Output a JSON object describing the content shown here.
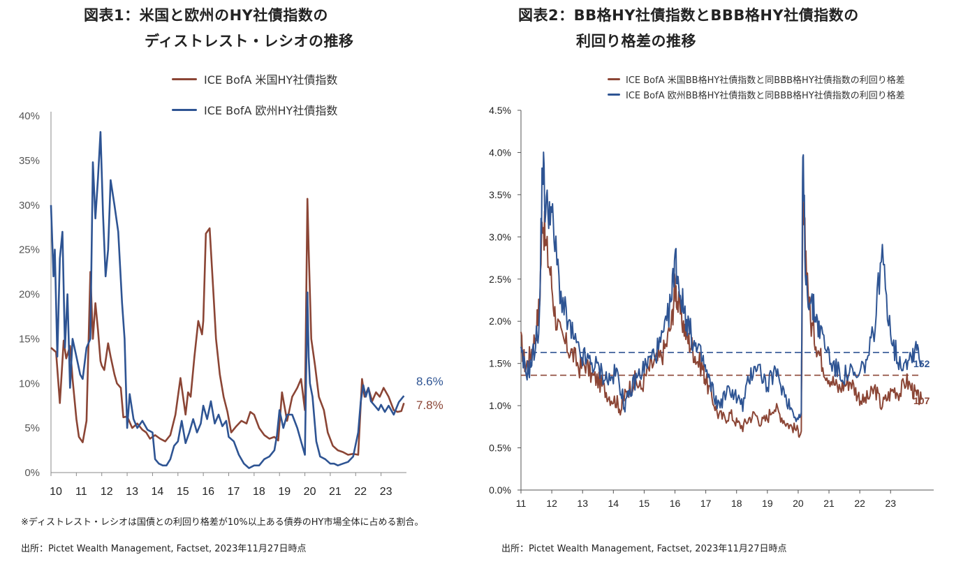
{
  "colors": {
    "us": "#8B4535",
    "eu": "#2E5493",
    "axis": "#555555"
  },
  "panel1": {
    "title_line1": "図表1：米国と欧州のHY社債指数の",
    "title_line2": "ディストレスト・レシオの推移",
    "legend": [
      "ICE BofA 米国HY社債指数",
      "ICE BofA 欧州HY社債指数"
    ],
    "end_labels": {
      "eu": "8.6%",
      "us": "7.8%"
    },
    "note": "※ディストレスト・レシオは国債との利回り格差が10%以上ある債券のHY市場全体に占める割合。",
    "source": "出所：Pictet Wealth Management, Factset, 2023年11月27日時点"
  },
  "panel2": {
    "title_line1": "図表2：BB格HY社債指数とBBB格HY社債指数の",
    "title_line2": "利回り格差の推移",
    "legend": [
      "ICE BofA 米国BB格HY社債指数と同BBB格HY社債指数の利回り格差",
      "ICE BofA 欧州BB格HY社債指数と同BBB格HY社債指数の利回り格差"
    ],
    "end_labels": {
      "eu": "152",
      "us": "107"
    },
    "source": "出所：Pictet Wealth Management, Factset, 2023年11月27日時点"
  },
  "chart_data": [
    {
      "type": "line",
      "title": "図表1：米国と欧州のHY社債指数のディストレスト・レシオの推移",
      "x_ticks": [
        "10",
        "11",
        "12",
        "13",
        "14",
        "15",
        "16",
        "17",
        "18",
        "19",
        "20",
        "21",
        "22",
        "23"
      ],
      "y_ticks": [
        "0%",
        "5%",
        "10%",
        "15%",
        "20%",
        "25%",
        "30%",
        "35%",
        "40%"
      ],
      "xlim": [
        2010.0,
        2024.0
      ],
      "ylim": [
        0,
        40
      ],
      "series": [
        {
          "name": "ICE BofA 米国HY社債指数",
          "color": "#8B4535",
          "x": [
            2010.0,
            2010.2,
            2010.35,
            2010.5,
            2010.6,
            2010.75,
            2010.85,
            2011.0,
            2011.1,
            2011.25,
            2011.4,
            2011.55,
            2011.65,
            2011.75,
            2011.85,
            2011.95,
            2012.0,
            2012.1,
            2012.25,
            2012.35,
            2012.5,
            2012.6,
            2012.75,
            2012.85,
            2013.0,
            2013.2,
            2013.4,
            2013.6,
            2013.75,
            2013.9,
            2014.1,
            2014.3,
            2014.5,
            2014.7,
            2014.9,
            2015.1,
            2015.3,
            2015.4,
            2015.5,
            2015.65,
            2015.8,
            2015.95,
            2016.0,
            2016.1,
            2016.25,
            2016.4,
            2016.5,
            2016.65,
            2016.8,
            2016.95,
            2017.1,
            2017.3,
            2017.5,
            2017.7,
            2017.85,
            2018.0,
            2018.2,
            2018.4,
            2018.6,
            2018.8,
            2018.95,
            2019.1,
            2019.3,
            2019.5,
            2019.7,
            2019.85,
            2020.0,
            2020.1,
            2020.15,
            2020.25,
            2020.4,
            2020.55,
            2020.75,
            2020.9,
            2021.1,
            2021.3,
            2021.5,
            2021.7,
            2021.9,
            2022.1,
            2022.25,
            2022.35,
            2022.5,
            2022.65,
            2022.8,
            2022.95,
            2023.1,
            2023.3,
            2023.5,
            2023.65,
            2023.8,
            2023.9
          ],
          "y": [
            14,
            13.5,
            7.8,
            14.8,
            12.8,
            14.2,
            10.5,
            6,
            4,
            3.4,
            5.8,
            22.5,
            15,
            19,
            16,
            12.5,
            12,
            11.5,
            14.5,
            13,
            11,
            10,
            9.5,
            6.2,
            6.3,
            5,
            5.5,
            4.8,
            4.5,
            3.8,
            4.2,
            3.8,
            3.5,
            4.2,
            6.5,
            10.6,
            6.5,
            9,
            8.5,
            13,
            17,
            15.5,
            17,
            26.8,
            27.4,
            20,
            15,
            11,
            8.5,
            6.8,
            4.5,
            5.2,
            5.8,
            5.5,
            6.8,
            6.5,
            5,
            4.2,
            3.8,
            4.0,
            3.6,
            9.0,
            5.8,
            8.5,
            9.5,
            10.5,
            7,
            30.7,
            25,
            15,
            12,
            8.5,
            7,
            4.5,
            3,
            2.5,
            2.3,
            2.0,
            2.1,
            2.0,
            10.5,
            8.5,
            9.5,
            8.0,
            9.0,
            8.5,
            9.5,
            8.5,
            7.0,
            6.8,
            6.9,
            7.8
          ]
        },
        {
          "name": "ICE BofA 欧州HY社債指数",
          "color": "#2E5493",
          "x": [
            2010.0,
            2010.1,
            2010.15,
            2010.25,
            2010.35,
            2010.45,
            2010.55,
            2010.65,
            2010.75,
            2010.85,
            2011.0,
            2011.15,
            2011.25,
            2011.4,
            2011.55,
            2011.65,
            2011.75,
            2011.85,
            2011.95,
            2012.05,
            2012.15,
            2012.25,
            2012.35,
            2012.5,
            2012.65,
            2012.8,
            2012.9,
            2013.0,
            2013.1,
            2013.25,
            2013.4,
            2013.6,
            2013.8,
            2014.0,
            2014.1,
            2014.25,
            2014.4,
            2014.55,
            2014.7,
            2014.85,
            2015.0,
            2015.15,
            2015.3,
            2015.45,
            2015.6,
            2015.75,
            2015.9,
            2016.0,
            2016.15,
            2016.3,
            2016.45,
            2016.6,
            2016.75,
            2016.9,
            2017.0,
            2017.2,
            2017.4,
            2017.6,
            2017.8,
            2018.0,
            2018.2,
            2018.4,
            2018.6,
            2018.8,
            2018.9,
            2019.0,
            2019.15,
            2019.3,
            2019.5,
            2019.7,
            2019.85,
            2020.0,
            2020.1,
            2020.15,
            2020.2,
            2020.3,
            2020.45,
            2020.6,
            2020.8,
            2021.0,
            2021.15,
            2021.3,
            2021.5,
            2021.7,
            2021.9,
            2022.1,
            2022.2,
            2022.3,
            2022.4,
            2022.5,
            2022.6,
            2022.75,
            2022.9,
            2023.0,
            2023.15,
            2023.3,
            2023.5,
            2023.7,
            2023.9
          ],
          "y": [
            30,
            22,
            25,
            13,
            24,
            27,
            14,
            20,
            9.5,
            15,
            13,
            11,
            10.5,
            14,
            15,
            34.8,
            28.5,
            33,
            38.2,
            29,
            22,
            25,
            32.8,
            30,
            27,
            19,
            15,
            5,
            8.8,
            6,
            5,
            5.8,
            4.8,
            4.5,
            1.5,
            1,
            0.8,
            0.8,
            1.5,
            3,
            3.5,
            5.8,
            3.3,
            4.5,
            6,
            4.5,
            5.5,
            7.5,
            6,
            8,
            5.5,
            6.5,
            5.2,
            5.8,
            4,
            3.5,
            2,
            1,
            0.5,
            0.8,
            0.8,
            1.5,
            1.8,
            2.5,
            4.2,
            7.0,
            5,
            6.5,
            6.5,
            5,
            3.5,
            2,
            20.2,
            13,
            10,
            8.5,
            3.5,
            1.8,
            1.5,
            1,
            1,
            0.8,
            1,
            1.2,
            1.8,
            4.5,
            8,
            9.8,
            8.5,
            9.5,
            8,
            7.5,
            7,
            7.6,
            6.8,
            7.5,
            6.5,
            7.9,
            8.6
          ]
        }
      ]
    },
    {
      "type": "line",
      "title": "図表2：BB格HY社債指数とBBB格HY社債指数の利回り格差の推移",
      "x_ticks": [
        "11",
        "12",
        "13",
        "14",
        "15",
        "16",
        "17",
        "18",
        "19",
        "20",
        "21",
        "22",
        "23"
      ],
      "y_ticks": [
        "0.0%",
        "0.5%",
        "1.0%",
        "1.5%",
        "2.0%",
        "2.5%",
        "3.0%",
        "3.5%",
        "4.0%",
        "4.5%"
      ],
      "xlim": [
        2011.0,
        2024.4
      ],
      "ylim": [
        0,
        4.5
      ],
      "reference_lines": [
        {
          "y": 1.63,
          "color": "#2E5493"
        },
        {
          "y": 1.36,
          "color": "#8B4535"
        }
      ],
      "series": [
        {
          "name": "ICE BofA 米国BB格HY社債指数と同BBB格HY社債指数の利回り格差",
          "color": "#8B4535",
          "x": [
            2011.0,
            2011.15,
            2011.3,
            2011.45,
            2011.6,
            2011.7,
            2011.8,
            2011.95,
            2012.1,
            2012.3,
            2012.5,
            2012.7,
            2012.9,
            2013.1,
            2013.3,
            2013.5,
            2013.7,
            2013.9,
            2014.1,
            2014.25,
            2014.35,
            2014.5,
            2014.7,
            2014.9,
            2015.1,
            2015.3,
            2015.5,
            2015.7,
            2015.9,
            2016.0,
            2016.1,
            2016.25,
            2016.4,
            2016.55,
            2016.7,
            2016.9,
            2017.0,
            2017.2,
            2017.4,
            2017.6,
            2017.8,
            2018.0,
            2018.2,
            2018.4,
            2018.6,
            2018.8,
            2019.0,
            2019.2,
            2019.4,
            2019.6,
            2019.8,
            2020.0,
            2020.1,
            2020.15,
            2020.25,
            2020.4,
            2020.55,
            2020.7,
            2020.9,
            2021.1,
            2021.3,
            2021.5,
            2021.7,
            2021.9,
            2022.1,
            2022.3,
            2022.5,
            2022.7,
            2022.9,
            2023.1,
            2023.3,
            2023.5,
            2023.7,
            2023.85,
            2024.0
          ],
          "y": [
            1.75,
            1.45,
            1.6,
            1.8,
            2.2,
            3.3,
            2.9,
            2.6,
            2.1,
            1.8,
            1.7,
            1.6,
            1.45,
            1.5,
            1.35,
            1.3,
            1.2,
            1.1,
            1.05,
            0.95,
            1.1,
            1.2,
            1.3,
            1.2,
            1.4,
            1.5,
            1.55,
            1.7,
            2.0,
            2.45,
            2.2,
            2.0,
            1.8,
            1.7,
            1.55,
            1.45,
            1.3,
            1.1,
            0.9,
            0.85,
            0.9,
            0.8,
            0.75,
            0.85,
            0.9,
            0.8,
            0.85,
            1.0,
            0.9,
            0.8,
            0.75,
            0.7,
            0.65,
            3.3,
            2.8,
            2.0,
            1.8,
            1.6,
            1.4,
            1.3,
            1.2,
            1.25,
            1.3,
            1.15,
            1.05,
            1.1,
            1.2,
            1.0,
            1.1,
            1.2,
            1.15,
            1.3,
            1.2,
            1.1,
            1.07
          ]
        },
        {
          "name": "ICE BofA 欧州BB格HY社債指数と同BBB格HY社債指数の利回り格差",
          "color": "#2E5493",
          "x": [
            2011.0,
            2011.15,
            2011.3,
            2011.45,
            2011.6,
            2011.7,
            2011.8,
            2011.95,
            2012.1,
            2012.3,
            2012.5,
            2012.7,
            2012.9,
            2013.1,
            2013.3,
            2013.5,
            2013.7,
            2013.9,
            2014.1,
            2014.25,
            2014.35,
            2014.5,
            2014.7,
            2014.9,
            2015.1,
            2015.3,
            2015.5,
            2015.7,
            2015.9,
            2016.0,
            2016.1,
            2016.25,
            2016.4,
            2016.55,
            2016.7,
            2016.9,
            2017.0,
            2017.2,
            2017.4,
            2017.6,
            2017.8,
            2018.0,
            2018.2,
            2018.4,
            2018.6,
            2018.8,
            2019.0,
            2019.2,
            2019.4,
            2019.6,
            2019.8,
            2020.0,
            2020.1,
            2020.15,
            2020.25,
            2020.4,
            2020.55,
            2020.7,
            2020.9,
            2021.1,
            2021.3,
            2021.5,
            2021.7,
            2021.9,
            2022.1,
            2022.3,
            2022.5,
            2022.7,
            2022.9,
            2023.1,
            2023.3,
            2023.5,
            2023.7,
            2023.85,
            2024.0
          ],
          "y": [
            1.6,
            1.4,
            1.45,
            1.7,
            2.0,
            3.95,
            3.3,
            3.4,
            2.9,
            2.3,
            2.0,
            1.8,
            1.6,
            1.55,
            1.5,
            1.45,
            1.35,
            1.3,
            1.4,
            1.2,
            1.0,
            1.1,
            1.3,
            1.4,
            1.5,
            1.6,
            1.7,
            1.9,
            2.3,
            2.8,
            2.5,
            2.2,
            2.0,
            1.8,
            1.65,
            1.55,
            1.4,
            1.2,
            1.0,
            1.1,
            1.2,
            1.1,
            1.0,
            1.3,
            1.5,
            1.4,
            1.2,
            1.4,
            1.3,
            1.1,
            0.95,
            0.85,
            0.9,
            3.95,
            2.5,
            2.2,
            2.1,
            1.9,
            1.7,
            1.5,
            1.4,
            1.35,
            1.4,
            1.3,
            1.45,
            1.6,
            2.0,
            2.8,
            2.2,
            1.7,
            1.5,
            1.55,
            1.6,
            1.75,
            1.52
          ]
        }
      ]
    }
  ]
}
